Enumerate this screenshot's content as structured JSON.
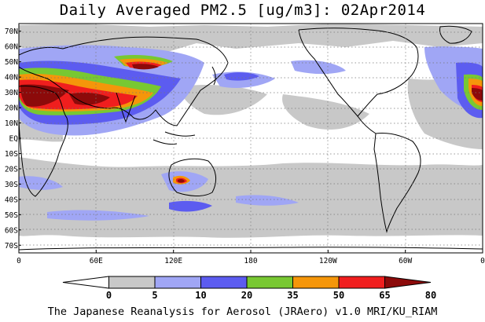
{
  "title": "Daily Averaged PM2.5 [ug/m3]: 02Apr2014",
  "map": {
    "projection": "equirectangular",
    "lon_range": [
      0,
      360
    ],
    "lat_range": [
      -75,
      75
    ],
    "lat_ticks": [
      "70N",
      "60N",
      "50N",
      "40N",
      "30N",
      "20N",
      "10N",
      "EQ",
      "10S",
      "20S",
      "30S",
      "40S",
      "50S",
      "60S",
      "70S"
    ],
    "lat_tick_values": [
      70,
      60,
      50,
      40,
      30,
      20,
      10,
      0,
      -10,
      -20,
      -30,
      -40,
      -50,
      -60,
      -70
    ],
    "lon_ticks": [
      "0",
      "60E",
      "120E",
      "180",
      "120W",
      "60W",
      "0"
    ],
    "lon_tick_values": [
      0,
      60,
      120,
      180,
      240,
      300,
      360
    ],
    "grid": "dotted"
  },
  "colorbar": {
    "labels": [
      "0",
      "5",
      "10",
      "20",
      "35",
      "50",
      "65",
      "80"
    ],
    "colors": [
      "#ffffff",
      "#c8c8c8",
      "#a0a6f5",
      "#5c5cf0",
      "#78c832",
      "#f5960a",
      "#f01e1e",
      "#8c0a0a"
    ],
    "extend": "both"
  },
  "credit": "The Japanese Reanalysis for Aerosol (JRAero) v1.0 MRI/KU_RIAM"
}
